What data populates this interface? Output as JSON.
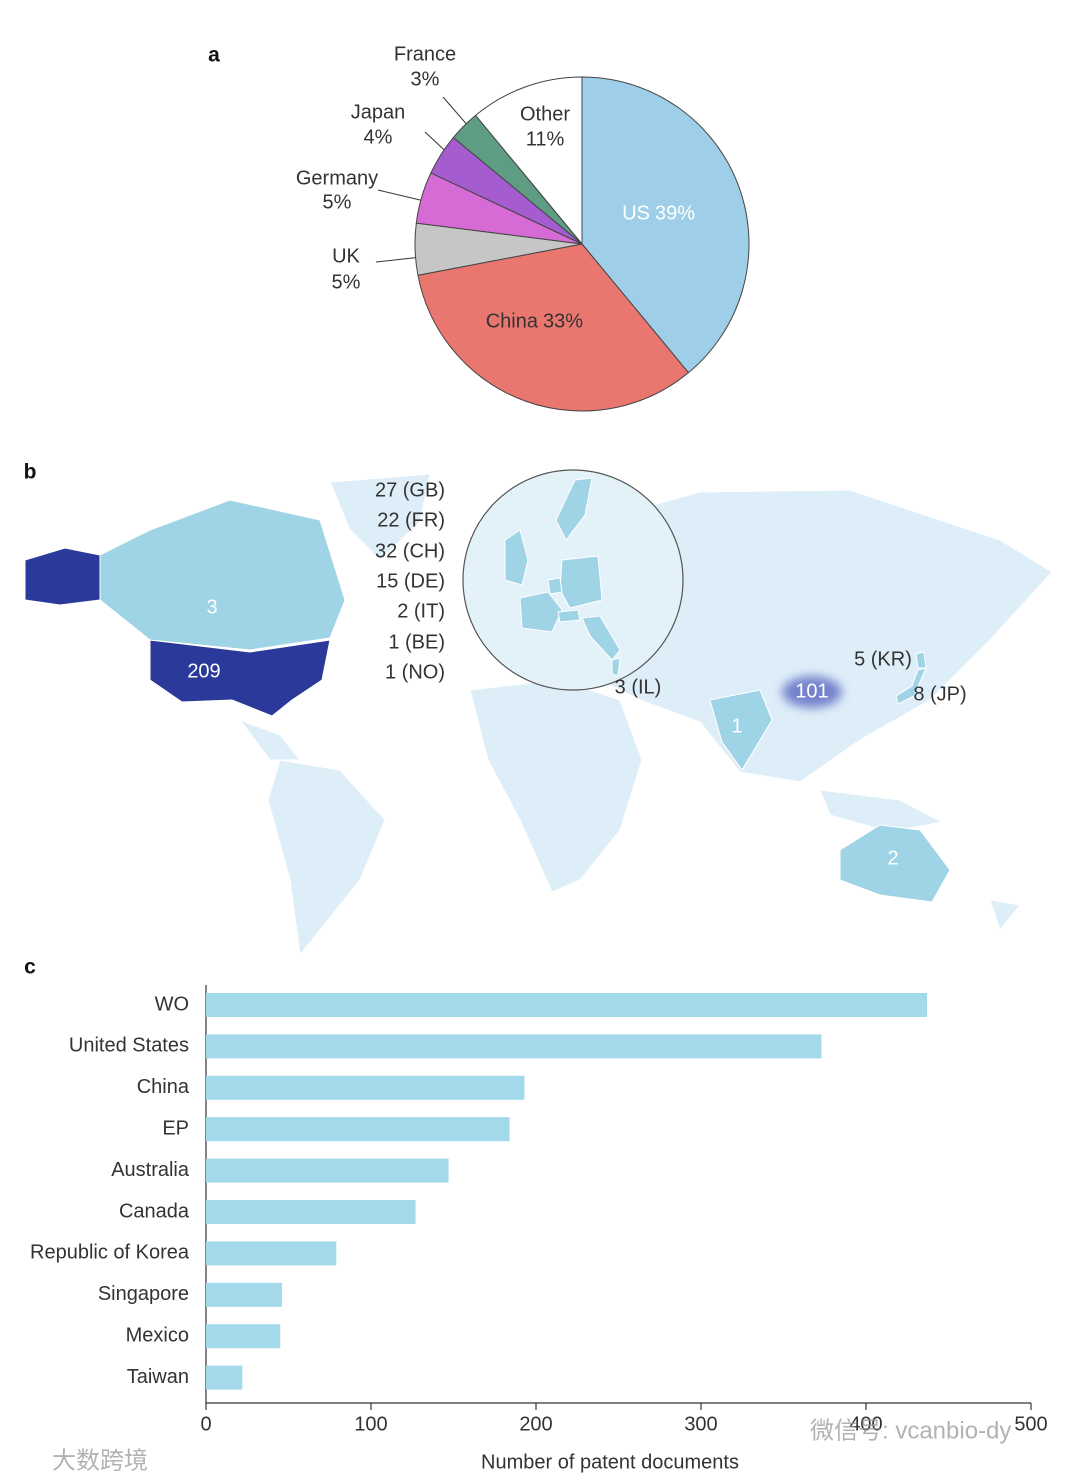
{
  "chart_data": [
    {
      "type": "pie",
      "panel": "a",
      "categories": [
        "US",
        "China",
        "UK",
        "Germany",
        "Japan",
        "France",
        "Other"
      ],
      "values": [
        39,
        33,
        5,
        5,
        4,
        3,
        11
      ],
      "value_labels": [
        "39%",
        "33%",
        "5%",
        "5%",
        "4%",
        "3%",
        "11%"
      ],
      "colors": [
        "#9fcfe8",
        "#e9776f",
        "#c6c6c6",
        "#d66bd6",
        "#a55ccf",
        "#5e9c84",
        "#ffffff"
      ]
    },
    {
      "type": "map",
      "panel": "b",
      "values": [
        209,
        101,
        3,
        27,
        22,
        32,
        15,
        2,
        1,
        1,
        3,
        5,
        8,
        1,
        2
      ],
      "value_labels": [
        "209",
        "101",
        "3",
        "27 (GB)",
        "22 (FR)",
        "32 (CH)",
        "15 (DE)",
        "2 (IT)",
        "1 (BE)",
        "1 (NO)",
        "3 (IL)",
        "5 (KR)",
        "8 (JP)",
        "1",
        "2"
      ],
      "colors": [
        "#2b3a9a",
        "#7482cc",
        "#9fd3e6",
        "#9fd3e6",
        "#9fd3e6",
        "#9fd3e6",
        "#9fd3e6",
        "#9fd3e6",
        "#9fd3e6",
        "#9fd3e6",
        "#9fd3e6",
        "#9fd3e6",
        "#9fd3e6",
        "#9fd3e6",
        "#9fd3e6"
      ]
    },
    {
      "type": "bar",
      "orientation": "horizontal",
      "panel": "c",
      "categories": [
        "WO",
        "United States",
        "China",
        "EP",
        "Australia",
        "Canada",
        "Republic of Korea",
        "Singapore",
        "Mexico",
        "Taiwan"
      ],
      "values": [
        437,
        373,
        193,
        184,
        147,
        127,
        79,
        46,
        45,
        22
      ],
      "color": "#a3d9ea",
      "xlim": [
        0,
        500
      ],
      "xticks": [
        0,
        100,
        200,
        300,
        400,
        500
      ],
      "xlabel": "Number of patent documents"
    }
  ],
  "watermarks": [
    "微信号: vcanbio-dy",
    "大数跨境"
  ]
}
